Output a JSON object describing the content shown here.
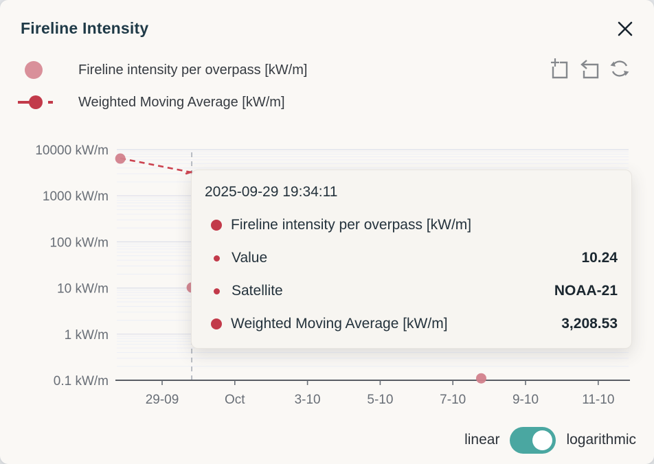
{
  "panel": {
    "title": "Fireline Intensity"
  },
  "legend": [
    {
      "label": "Fireline intensity per overpass [kW/m]",
      "marker": "circle",
      "color": "#d9909a"
    },
    {
      "label": "Weighted Moving Average [kW/m]",
      "marker": "line-dot-dash",
      "color": "#c23a4a"
    }
  ],
  "toolbox": {
    "icons": [
      "box-zoom",
      "zoom-back",
      "refresh"
    ]
  },
  "chart_data": {
    "type": "scatter",
    "title": "Fireline Intensity",
    "y_axis": {
      "scale": "logarithmic",
      "ticks": [
        "10000 kW/m",
        "1000 kW/m",
        "100 kW/m",
        "10 kW/m",
        "1 kW/m",
        "0.1 kW/m"
      ],
      "tick_values": [
        10000,
        1000,
        100,
        10,
        1,
        0.1
      ]
    },
    "x_axis": {
      "ticks": [
        "29-09",
        "Oct",
        "3-10",
        "5-10",
        "7-10",
        "9-10",
        "11-10"
      ],
      "tick_day_offsets": [
        0,
        2,
        4,
        6,
        8,
        10,
        12
      ]
    },
    "series": [
      {
        "name": "Fireline intensity per overpass [kW/m]",
        "type": "scatter",
        "color": "#d2818c",
        "points": [
          {
            "day_offset": -1.15,
            "value": 6400
          },
          {
            "day_offset": 0.815,
            "value": 10.24,
            "satellite": "NOAA-21",
            "hovered": true
          },
          {
            "day_offset": 8.78,
            "value": 0.11
          }
        ]
      },
      {
        "name": "Weighted Moving Average [kW/m]",
        "type": "line",
        "style": "dashed",
        "color": "#cc4350",
        "points": [
          {
            "day_offset": -1.15,
            "value": 6500
          },
          {
            "day_offset": 0.815,
            "value": 3208.53
          }
        ]
      }
    ],
    "axis_pointer_day_offset": 0.815,
    "legend_position": "top-left",
    "grid": true
  },
  "tooltip": {
    "header": "2025-09-29 19:34:11",
    "rows": [
      {
        "marker": "large",
        "label": "Fireline intensity per overpass [kW/m]",
        "value": ""
      },
      {
        "marker": "small",
        "label": "Value",
        "value": "10.24"
      },
      {
        "marker": "small",
        "label": "Satellite",
        "value": "NOAA-21"
      },
      {
        "marker": "large",
        "label": "Weighted Moving Average [kW/m]",
        "value": "3,208.53"
      }
    ]
  },
  "toggle": {
    "left_label": "linear",
    "right_label": "logarithmic",
    "state": "logarithmic",
    "color": "#4aa7a1"
  },
  "colors": {
    "card_bg": "#faf8f5",
    "title": "#1f3a47",
    "axis_text": "#686e76",
    "axis_line": "#585d64",
    "grid_major": "#dcdeea",
    "grid_minor": "#edeff7",
    "pointer": "#a9aeb6",
    "scatter": "#d2818c",
    "wma": "#c23a4a",
    "toolbox_icon": "#85888c"
  }
}
